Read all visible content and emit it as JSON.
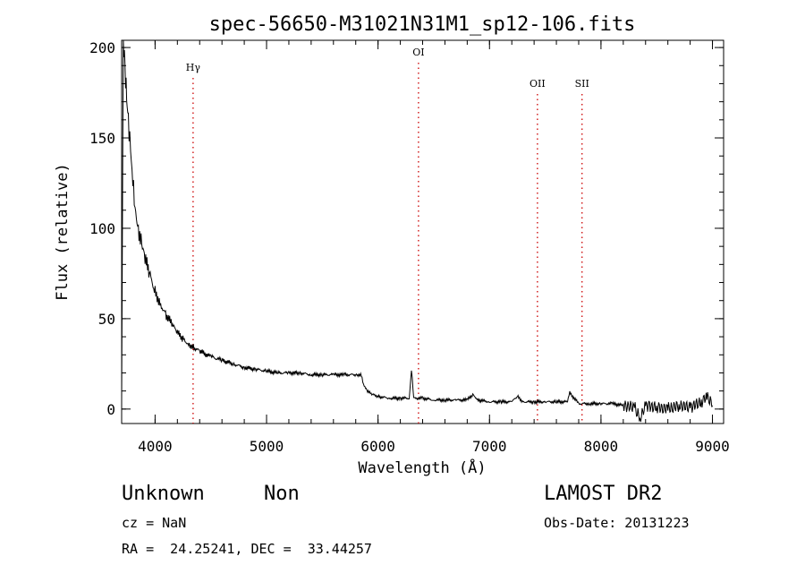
{
  "chart_data": {
    "type": "line",
    "title": "spec-56650-M31021N31M1_sp12-106.fits",
    "xlabel": "Wavelength (Å)",
    "ylabel": "Flux (relative)",
    "xlim": [
      3700,
      9100
    ],
    "ylim": [
      -8,
      204
    ],
    "xticks": [
      4000,
      5000,
      6000,
      7000,
      8000,
      9000
    ],
    "yticks": [
      0,
      50,
      100,
      150,
      200
    ],
    "grid": false,
    "line_color": "#000000",
    "marker_color": "#cc0000",
    "lines": [
      {
        "label": "Hγ",
        "wavelength": 4341
      },
      {
        "label": "OI",
        "wavelength": 6363
      },
      {
        "label": "OII",
        "wavelength": 7430
      },
      {
        "label": "SII",
        "wavelength": 7830
      }
    ],
    "series": [
      {
        "x": [
          3700,
          3715,
          3725,
          3735,
          3745,
          3760,
          3780,
          3800,
          3820,
          3850,
          3880,
          3910,
          3950,
          4000,
          4050,
          4100,
          4150,
          4200,
          4250,
          4300,
          4350,
          4400,
          4500,
          4600,
          4700,
          4800,
          4900,
          5000,
          5100,
          5200,
          5300,
          5400,
          5500,
          5600,
          5700,
          5800,
          5850,
          5870,
          5900,
          5950,
          6000,
          6100,
          6200,
          6280,
          6300,
          6320,
          6400,
          6500,
          6600,
          6700,
          6800,
          6850,
          6900,
          7000,
          7100,
          7200,
          7250,
          7300,
          7400,
          7500,
          7600,
          7700,
          7720,
          7800,
          7900,
          8000,
          8100,
          8200,
          8300,
          8350,
          8400,
          8500,
          8600,
          8700,
          8800,
          8900,
          8950,
          9000
        ],
        "y": [
          5,
          200,
          195,
          185,
          175,
          160,
          140,
          125,
          112,
          100,
          92,
          83,
          75,
          65,
          58,
          52,
          47,
          42,
          39,
          36,
          34,
          32,
          29,
          27,
          25,
          23,
          22,
          21,
          20,
          20,
          20,
          19,
          19,
          19,
          19,
          19,
          19,
          14,
          10,
          8,
          7,
          6,
          6,
          6,
          22,
          6,
          6,
          5,
          5,
          5,
          5,
          8,
          5,
          4,
          4,
          4,
          7,
          4,
          4,
          4,
          4,
          4,
          9,
          3,
          3,
          3,
          3,
          2,
          1,
          -5,
          2,
          1,
          0,
          2,
          1,
          4,
          7,
          2
        ]
      }
    ]
  },
  "info": {
    "object_class": "Unknown",
    "object_subclass": "Non",
    "survey": "LAMOST DR2",
    "redshift": "cz = NaN",
    "obs_date": "Obs-Date: 20131223",
    "coords": "RA =  24.25241, DEC =  33.44257"
  }
}
